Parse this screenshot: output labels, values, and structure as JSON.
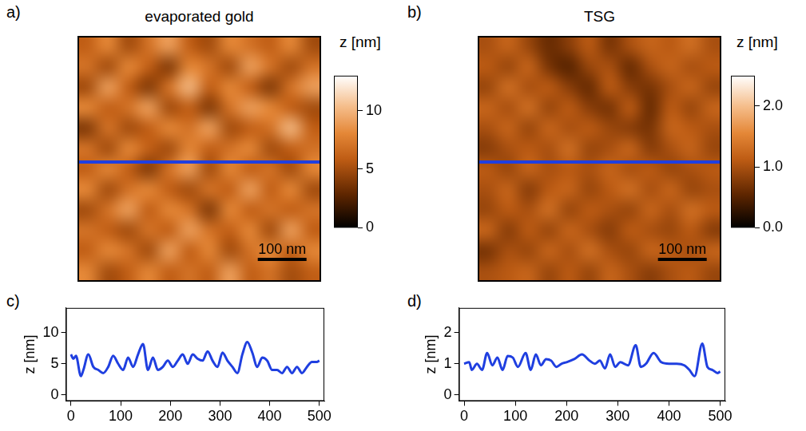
{
  "chart_data": [
    {
      "type": "heatmap",
      "panel": "a)",
      "title": "evaporated gold",
      "xlim": [
        0,
        500
      ],
      "ylim": [
        0,
        500
      ],
      "tick_labels": false,
      "cells": [
        [
          6,
          8,
          5,
          7,
          9,
          6,
          5,
          8,
          7,
          6,
          8,
          5
        ],
        [
          7,
          5,
          8,
          6,
          4,
          8,
          7,
          5,
          9,
          7,
          5,
          7
        ],
        [
          5,
          9,
          6,
          4,
          7,
          10,
          6,
          8,
          6,
          4,
          7,
          9
        ],
        [
          8,
          6,
          7,
          9,
          5,
          6,
          4,
          7,
          9,
          8,
          6,
          5
        ],
        [
          4,
          7,
          5,
          6,
          8,
          7,
          9,
          5,
          6,
          7,
          10,
          6
        ],
        [
          7,
          5,
          8,
          6,
          5,
          8,
          6,
          7,
          8,
          5,
          6,
          7
        ],
        [
          6,
          8,
          6,
          4,
          7,
          9,
          5,
          8,
          6,
          7,
          5,
          8
        ],
        [
          8,
          5,
          7,
          8,
          6,
          5,
          7,
          6,
          9,
          6,
          8,
          5
        ],
        [
          5,
          7,
          9,
          6,
          8,
          7,
          4,
          8,
          6,
          7,
          6,
          7
        ],
        [
          7,
          6,
          5,
          7,
          6,
          9,
          7,
          6,
          8,
          5,
          9,
          6
        ],
        [
          6,
          8,
          7,
          5,
          9,
          6,
          8,
          5,
          7,
          8,
          6,
          8
        ],
        [
          8,
          5,
          6,
          8,
          6,
          7,
          6,
          9,
          6,
          7,
          5,
          6
        ]
      ],
      "colorbar": {
        "title": "z [nm]",
        "range": [
          0,
          13
        ],
        "ticks": [
          0,
          5,
          10
        ]
      },
      "scale_bar": {
        "label": "100 nm",
        "length": 100
      }
    },
    {
      "type": "heatmap",
      "panel": "b)",
      "title": "TSG",
      "xlim": [
        0,
        500
      ],
      "ylim": [
        0,
        500
      ],
      "tick_labels": false,
      "cells": [
        [
          1.0,
          1.2,
          0.9,
          0.6,
          0.8,
          1.1,
          0.7,
          1.0,
          1.2,
          1.1,
          1.3,
          1.0
        ],
        [
          1.1,
          0.9,
          1.2,
          0.7,
          0.5,
          0.9,
          1.0,
          0.6,
          1.0,
          1.2,
          1.0,
          1.1
        ],
        [
          0.9,
          1.3,
          1.0,
          1.1,
          0.8,
          0.6,
          1.1,
          0.8,
          0.7,
          1.0,
          1.2,
          0.9
        ],
        [
          1.2,
          1.0,
          1.3,
          0.9,
          1.1,
          0.8,
          0.7,
          1.1,
          0.6,
          1.1,
          0.9,
          1.2
        ],
        [
          1.0,
          1.2,
          0.9,
          1.2,
          1.0,
          1.1,
          0.9,
          0.8,
          0.7,
          1.2,
          1.1,
          1.0
        ],
        [
          0.8,
          1.0,
          1.1,
          1.0,
          1.3,
          0.9,
          1.0,
          1.2,
          0.8,
          1.0,
          1.2,
          0.9
        ],
        [
          1.1,
          0.9,
          1.2,
          1.0,
          1.1,
          1.0,
          1.2,
          1.0,
          1.1,
          0.9,
          1.0,
          1.1
        ],
        [
          1.0,
          1.2,
          0.8,
          1.1,
          1.2,
          0.9,
          1.1,
          1.3,
          1.0,
          1.2,
          0.9,
          1.0
        ],
        [
          0.9,
          1.1,
          1.0,
          1.3,
          0.9,
          1.1,
          1.0,
          0.9,
          1.2,
          1.0,
          1.3,
          1.1
        ],
        [
          1.2,
          0.8,
          1.1,
          0.9,
          1.2,
          1.0,
          0.8,
          1.1,
          1.0,
          0.9,
          1.1,
          0.8
        ],
        [
          0.7,
          1.0,
          0.9,
          1.2,
          1.0,
          1.3,
          1.0,
          0.9,
          1.2,
          1.1,
          1.0,
          1.2
        ],
        [
          1.0,
          1.1,
          1.2,
          0.9,
          1.1,
          0.9,
          1.2,
          1.0,
          0.8,
          1.0,
          1.1,
          0.9
        ]
      ],
      "colorbar": {
        "title": "z [nm]",
        "range": [
          0,
          2.5
        ],
        "ticks": [
          {
            "value": 0,
            "label": "0.0"
          },
          {
            "value": 1,
            "label": "1.0"
          },
          {
            "value": 2,
            "label": "2.0"
          }
        ]
      },
      "scale_bar": {
        "label": "100 nm",
        "length": 100
      }
    },
    {
      "type": "line",
      "panel": "c)",
      "color": "#1f3fe0",
      "y_label": "z [nm]",
      "xlim": [
        -10,
        510
      ],
      "xticks": [
        0,
        100,
        200,
        300,
        400,
        500
      ],
      "ylim": [
        -1,
        14
      ],
      "yticks": [
        0,
        5,
        10
      ],
      "x": [
        0,
        5,
        10,
        20,
        25,
        35,
        45,
        55,
        65,
        75,
        85,
        95,
        105,
        115,
        125,
        135,
        145,
        155,
        165,
        175,
        185,
        195,
        205,
        215,
        225,
        235,
        245,
        255,
        265,
        275,
        285,
        295,
        305,
        315,
        325,
        335,
        345,
        355,
        365,
        375,
        385,
        395,
        405,
        415,
        425,
        435,
        445,
        455,
        465,
        475,
        485,
        495,
        500
      ],
      "values": [
        6.5,
        5.8,
        6.3,
        3,
        4,
        6.5,
        4.5,
        4,
        3.5,
        4.5,
        6.3,
        5,
        4,
        6,
        4.5,
        6.5,
        8.2,
        4,
        6,
        4,
        4.5,
        5.5,
        4.5,
        5.5,
        6.5,
        5,
        6.5,
        5.8,
        5.5,
        7,
        5.5,
        4.5,
        6.8,
        5.5,
        4.5,
        3.5,
        6.5,
        8.5,
        6.8,
        4.5,
        6,
        5.5,
        4,
        4,
        3.5,
        4.5,
        3.5,
        4.5,
        3.5,
        4.5,
        5.3,
        5.3,
        5.5
      ]
    },
    {
      "type": "line",
      "panel": "d)",
      "color": "#1f3fe0",
      "y_label": "z [nm]",
      "xlim": [
        -10,
        510
      ],
      "xticks": [
        0,
        100,
        200,
        300,
        400,
        500
      ],
      "ylim": [
        -0.2,
        2.8
      ],
      "yticks": [
        0,
        1,
        2
      ],
      "x": [
        0,
        10,
        15,
        25,
        35,
        45,
        55,
        65,
        75,
        85,
        95,
        105,
        120,
        130,
        140,
        150,
        160,
        170,
        180,
        190,
        200,
        215,
        230,
        245,
        255,
        265,
        275,
        285,
        295,
        305,
        320,
        335,
        345,
        355,
        370,
        385,
        400,
        415,
        430,
        440,
        450,
        465,
        475,
        485,
        495,
        500
      ],
      "values": [
        1.0,
        1.05,
        0.8,
        1.0,
        0.8,
        1.35,
        0.95,
        1.2,
        0.8,
        1.25,
        1.2,
        0.9,
        1.35,
        0.8,
        1.3,
        0.95,
        1.15,
        1.1,
        0.9,
        1.0,
        1.05,
        1.15,
        1.3,
        1.1,
        1.0,
        1.1,
        0.85,
        1.3,
        0.9,
        1.05,
        0.95,
        1.6,
        0.9,
        1.0,
        1.35,
        1.05,
        1.0,
        1.0,
        0.95,
        0.8,
        0.6,
        1.65,
        0.9,
        0.8,
        0.7,
        0.75
      ]
    }
  ]
}
